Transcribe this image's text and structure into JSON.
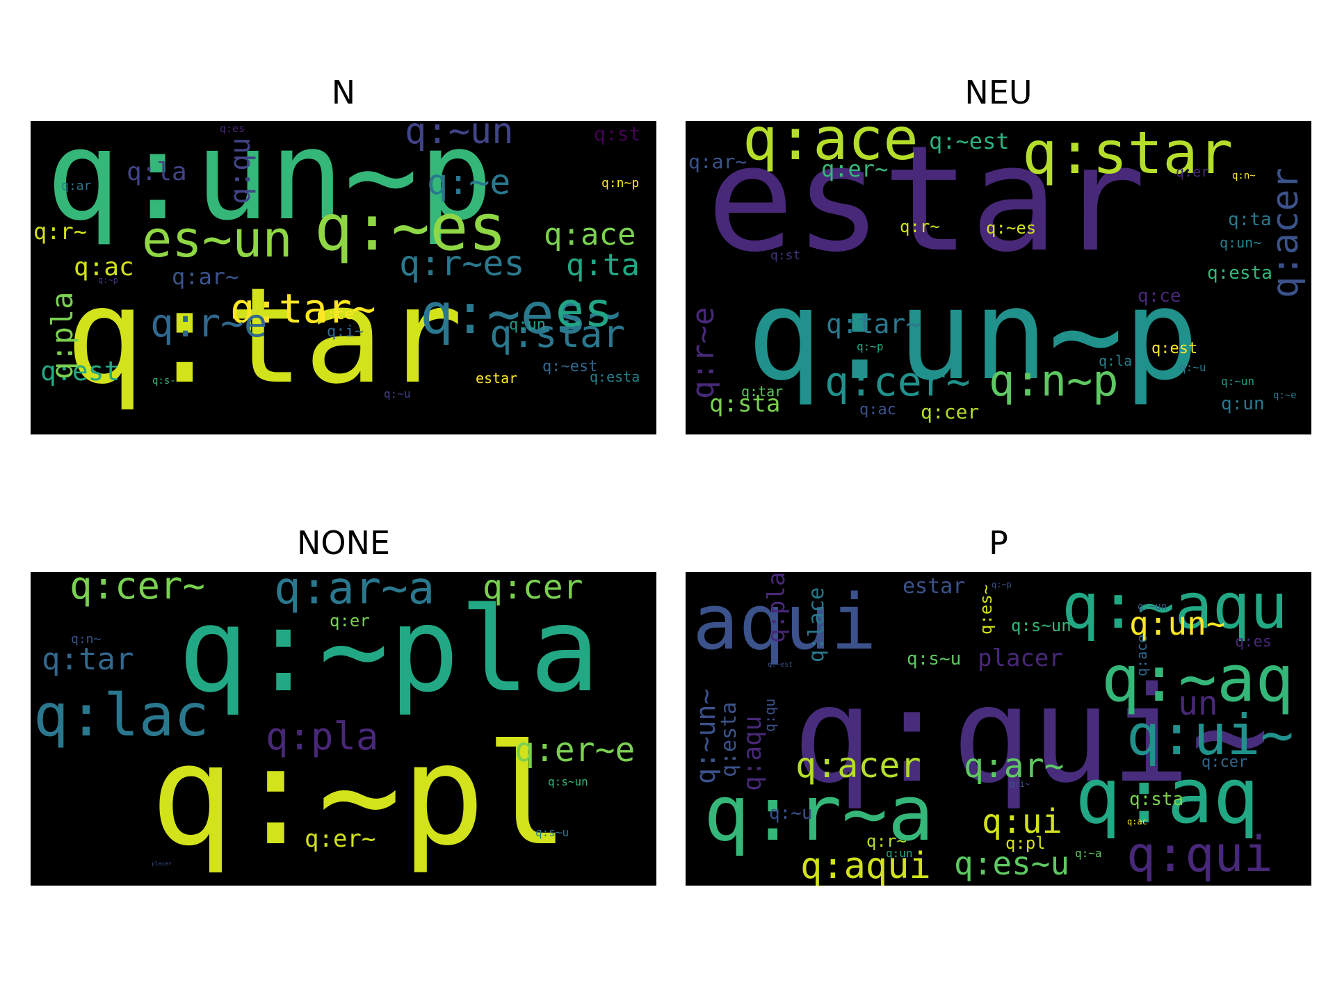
{
  "panels": [
    {
      "title": "N",
      "words": [
        {
          "text": "q:un~p",
          "color": "#35b779"
        },
        {
          "text": "q:tar",
          "color": "#d2e21b"
        },
        {
          "text": "q:~es",
          "color": "#8fd744"
        },
        {
          "text": "es~un",
          "color": "#8fd744"
        },
        {
          "text": "q:~es~",
          "color": "#2a788e"
        },
        {
          "text": "q:~un",
          "color": "#414487"
        },
        {
          "text": "q:~e",
          "color": "#2a788e"
        },
        {
          "text": "q:r~es",
          "color": "#2a788e"
        },
        {
          "text": "q:star",
          "color": "#2a788e"
        },
        {
          "text": "es",
          "color": "#21a585"
        },
        {
          "text": "q:tar~",
          "color": "#fde725"
        },
        {
          "text": "q:r~e",
          "color": "#31688e"
        },
        {
          "text": "q:ace",
          "color": "#7ad151"
        },
        {
          "text": "q:ta",
          "color": "#22a884"
        },
        {
          "text": "q:est",
          "color": "#22a884"
        },
        {
          "text": "q:pla",
          "color": "#7ad151"
        },
        {
          "text": "q:qu",
          "color": "#414487"
        },
        {
          "text": "q:la",
          "color": "#414487"
        },
        {
          "text": "q:st",
          "color": "#440154"
        },
        {
          "text": "q:ac",
          "color": "#d2e21b"
        },
        {
          "text": "q:r~",
          "color": "#d2e21b"
        },
        {
          "text": "q:ar~",
          "color": "#3b528b"
        },
        {
          "text": "q:ce",
          "color": "#fde725"
        },
        {
          "text": "q:un",
          "color": "#1f9e89"
        },
        {
          "text": "q:i~",
          "color": "#31688e"
        },
        {
          "text": "q:~est",
          "color": "#31688e"
        },
        {
          "text": "q:esta",
          "color": "#26828e"
        },
        {
          "text": "estar",
          "color": "#fde725"
        },
        {
          "text": "q:n~p",
          "color": "#fde725"
        },
        {
          "text": "q:ar",
          "color": "#2a788e"
        },
        {
          "text": "q:es",
          "color": "#482878"
        },
        {
          "text": "q:~p",
          "color": "#46337e"
        },
        {
          "text": "q:s-",
          "color": "#35b779"
        },
        {
          "text": "q:~u",
          "color": "#414487"
        }
      ]
    },
    {
      "title": "NEU",
      "words": [
        {
          "text": "estar",
          "color": "#482878"
        },
        {
          "text": "q:un~p",
          "color": "#21918c"
        },
        {
          "text": "q:ace",
          "color": "#b5de2b"
        },
        {
          "text": "q:star",
          "color": "#b5de2b"
        },
        {
          "text": "q:~est",
          "color": "#2db27d"
        },
        {
          "text": "q:er~",
          "color": "#35b779"
        },
        {
          "text": "q:ar~",
          "color": "#3b528b"
        },
        {
          "text": "q:acer",
          "color": "#3b528b"
        },
        {
          "text": "q:r~e",
          "color": "#482878"
        },
        {
          "text": "q:tar~",
          "color": "#2a788e"
        },
        {
          "text": "q:cer~",
          "color": "#21918c"
        },
        {
          "text": "q:n~p",
          "color": "#5ec962"
        },
        {
          "text": "q:sta",
          "color": "#7ad151"
        },
        {
          "text": "q:cer",
          "color": "#b5de2b"
        },
        {
          "text": "q:est",
          "color": "#fde725"
        },
        {
          "text": "q:esta",
          "color": "#35b779"
        },
        {
          "text": "q:r~",
          "color": "#d2e21b"
        },
        {
          "text": "q:~es",
          "color": "#d2e21b"
        },
        {
          "text": "q:ta",
          "color": "#2a788e"
        },
        {
          "text": "q:un~",
          "color": "#26828e"
        },
        {
          "text": "q:st",
          "color": "#46337e"
        },
        {
          "text": "q:ce",
          "color": "#482878"
        },
        {
          "text": "q:la",
          "color": "#26828e"
        },
        {
          "text": "q:~u",
          "color": "#2a788e"
        },
        {
          "text": "q:~un",
          "color": "#1f9e89"
        },
        {
          "text": "q:~e",
          "color": "#2a788e"
        },
        {
          "text": "q:un",
          "color": "#2a788e"
        },
        {
          "text": "q:tar",
          "color": "#5ec962"
        },
        {
          "text": "q:ac",
          "color": "#3b528b"
        },
        {
          "text": "q:er",
          "color": "#482878"
        },
        {
          "text": "q:n~",
          "color": "#fde725"
        },
        {
          "text": "q:~p",
          "color": "#22a884"
        }
      ]
    },
    {
      "title": "NONE",
      "words": [
        {
          "text": "q:~pla",
          "color": "#22a884"
        },
        {
          "text": "q:~pl",
          "color": "#d2e21b"
        },
        {
          "text": "q:cer~",
          "color": "#7ad151"
        },
        {
          "text": "q:ar~a",
          "color": "#2a788e"
        },
        {
          "text": "q:cer",
          "color": "#7ad151"
        },
        {
          "text": "q:lac",
          "color": "#2a788e"
        },
        {
          "text": "q:pla",
          "color": "#482878"
        },
        {
          "text": "q:tar",
          "color": "#31688e"
        },
        {
          "text": "q:er~e",
          "color": "#7ad151"
        },
        {
          "text": "q:er~",
          "color": "#d2e21b"
        },
        {
          "text": "q:er",
          "color": "#7ad151"
        },
        {
          "text": "q:n~",
          "color": "#3b528b"
        },
        {
          "text": "q:s~un",
          "color": "#35b779"
        },
        {
          "text": "q:s~u",
          "color": "#2a788e"
        },
        {
          "text": "placer",
          "color": "#3b528b"
        }
      ]
    },
    {
      "title": "P",
      "words": [
        {
          "text": "aqui",
          "color": "#3b528b"
        },
        {
          "text": "q:qui~",
          "color": "#472d7b"
        },
        {
          "text": "q:~aqu",
          "color": "#22a884"
        },
        {
          "text": "q:r~a",
          "color": "#35b779"
        },
        {
          "text": "q:aq",
          "color": "#22a884"
        },
        {
          "text": "q:~aq",
          "color": "#35b779"
        },
        {
          "text": "q:ui~",
          "color": "#21918c"
        },
        {
          "text": "q:qui",
          "color": "#482878"
        },
        {
          "text": "estar",
          "color": "#3b528b"
        },
        {
          "text": "q:un~",
          "color": "#fde725"
        },
        {
          "text": "placer",
          "color": "#482878"
        },
        {
          "text": "q:s~u",
          "color": "#5ec962"
        },
        {
          "text": "q:s~un",
          "color": "#35b779"
        },
        {
          "text": "q:acer",
          "color": "#b5de2b"
        },
        {
          "text": "q:ar~",
          "color": "#5ec962"
        },
        {
          "text": "q:ui",
          "color": "#d2e21b"
        },
        {
          "text": "q:sta",
          "color": "#7ad151"
        },
        {
          "text": "q:pl",
          "color": "#d2e21b"
        },
        {
          "text": "q:aqui",
          "color": "#d2e21b"
        },
        {
          "text": "q:es~u",
          "color": "#5ec962"
        },
        {
          "text": "un",
          "color": "#482878"
        },
        {
          "text": "q:cer",
          "color": "#31688e"
        },
        {
          "text": "q:es",
          "color": "#482878"
        },
        {
          "text": "q:~un~",
          "color": "#3b528b"
        },
        {
          "text": "q:esta",
          "color": "#3b528b"
        },
        {
          "text": "q:aqu",
          "color": "#482878"
        },
        {
          "text": "q:plac",
          "color": "#482878"
        },
        {
          "text": "q:lace",
          "color": "#2a788e"
        },
        {
          "text": "q:qu",
          "color": "#3b528b"
        },
        {
          "text": "q:es~",
          "color": "#d2e21b"
        },
        {
          "text": "q:~u",
          "color": "#3b528b"
        },
        {
          "text": "q:r~",
          "color": "#b5de2b"
        },
        {
          "text": "q:un",
          "color": "#22a884"
        },
        {
          "text": "q:~a",
          "color": "#5ec962"
        },
        {
          "text": "q:ac",
          "color": "#fde725"
        },
        {
          "text": "q:ace",
          "color": "#31688e"
        },
        {
          "text": "q:~p",
          "color": "#3b528b"
        },
        {
          "text": "q:~un",
          "color": "#3b528b"
        },
        {
          "text": "q:i~",
          "color": "#3b528b"
        },
        {
          "text": "q:~est",
          "color": "#3b528b"
        }
      ]
    }
  ]
}
